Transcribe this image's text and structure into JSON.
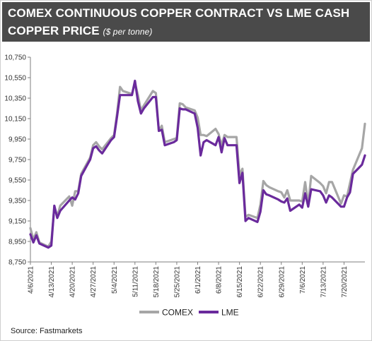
{
  "title_line1": "COMEX CONTINUOUS COPPER CONTRACT VS LME CASH",
  "title_line2": "COPPER PRICE",
  "subtitle": "($ per tonne)",
  "source": "Source: Fastmarkets",
  "chart_data": {
    "type": "line",
    "ylim": [
      8750,
      10750
    ],
    "yticks": [
      8750,
      8950,
      9150,
      9350,
      9550,
      9750,
      9950,
      10150,
      10350,
      10550,
      10750
    ],
    "ytick_labels": [
      "8,750",
      "8,950",
      "9,150",
      "9,350",
      "9,550",
      "9,750",
      "9,950",
      "10,150",
      "10,350",
      "10,550",
      "10,750"
    ],
    "xlim": [
      "2021-04-06",
      "2021-07-27"
    ],
    "xtick_labels": [
      "4/6/2021",
      "4/13/2021",
      "4/20/2021",
      "4/27/2021",
      "5/4/2021",
      "5/11/2021",
      "5/18/2021",
      "5/25/2021",
      "6/1/2021",
      "6/8/2021",
      "6/15/2021",
      "6/22/2021",
      "6/29/2021",
      "7/6/2021",
      "7/13/2021",
      "7/20/2021"
    ],
    "xtick_dates": [
      "2021-04-06",
      "2021-04-13",
      "2021-04-20",
      "2021-04-27",
      "2021-05-04",
      "2021-05-11",
      "2021-05-18",
      "2021-05-25",
      "2021-06-01",
      "2021-06-08",
      "2021-06-15",
      "2021-06-22",
      "2021-06-29",
      "2021-07-06",
      "2021-07-13",
      "2021-07-20"
    ],
    "grid": false,
    "legend": "bottom",
    "series": [
      {
        "name": "COMEX",
        "color": "#a6a6a6",
        "points": [
          [
            "2021-04-06",
            9080
          ],
          [
            "2021-04-07",
            8970
          ],
          [
            "2021-04-08",
            9040
          ],
          [
            "2021-04-09",
            8940
          ],
          [
            "2021-04-12",
            8900
          ],
          [
            "2021-04-13",
            8950
          ],
          [
            "2021-04-14",
            9280
          ],
          [
            "2021-04-15",
            9200
          ],
          [
            "2021-04-16",
            9300
          ],
          [
            "2021-04-19",
            9390
          ],
          [
            "2021-04-20",
            9300
          ],
          [
            "2021-04-21",
            9440
          ],
          [
            "2021-04-22",
            9440
          ],
          [
            "2021-04-23",
            9610
          ],
          [
            "2021-04-26",
            9770
          ],
          [
            "2021-04-27",
            9890
          ],
          [
            "2021-04-28",
            9920
          ],
          [
            "2021-04-29",
            9880
          ],
          [
            "2021-04-30",
            9850
          ],
          [
            "2021-05-03",
            9960
          ],
          [
            "2021-05-04",
            9990
          ],
          [
            "2021-05-05",
            10200
          ],
          [
            "2021-05-06",
            10460
          ],
          [
            "2021-05-07",
            10420
          ],
          [
            "2021-05-10",
            10390
          ],
          [
            "2021-05-11",
            10500
          ],
          [
            "2021-05-12",
            10380
          ],
          [
            "2021-05-13",
            10230
          ],
          [
            "2021-05-14",
            10280
          ],
          [
            "2021-05-17",
            10420
          ],
          [
            "2021-05-18",
            10400
          ],
          [
            "2021-05-19",
            10030
          ],
          [
            "2021-05-20",
            10080
          ],
          [
            "2021-05-21",
            9920
          ],
          [
            "2021-05-24",
            9950
          ],
          [
            "2021-05-25",
            9960
          ],
          [
            "2021-05-26",
            10300
          ],
          [
            "2021-05-27",
            10290
          ],
          [
            "2021-05-28",
            10260
          ],
          [
            "2021-05-31",
            10230
          ],
          [
            "2021-06-01",
            10160
          ],
          [
            "2021-06-02",
            9990
          ],
          [
            "2021-06-03",
            9990
          ],
          [
            "2021-06-04",
            9980
          ],
          [
            "2021-06-07",
            10050
          ],
          [
            "2021-06-08",
            10000
          ],
          [
            "2021-06-09",
            9890
          ],
          [
            "2021-06-10",
            9990
          ],
          [
            "2021-06-11",
            9970
          ],
          [
            "2021-06-14",
            9970
          ],
          [
            "2021-06-15",
            9600
          ],
          [
            "2021-06-16",
            9660
          ],
          [
            "2021-06-17",
            9190
          ],
          [
            "2021-06-18",
            9210
          ],
          [
            "2021-06-21",
            9180
          ],
          [
            "2021-06-22",
            9310
          ],
          [
            "2021-06-23",
            9540
          ],
          [
            "2021-06-24",
            9500
          ],
          [
            "2021-06-25",
            9480
          ],
          [
            "2021-06-28",
            9440
          ],
          [
            "2021-06-29",
            9430
          ],
          [
            "2021-06-30",
            9380
          ],
          [
            "2021-07-01",
            9450
          ],
          [
            "2021-07-02",
            9350
          ],
          [
            "2021-07-05",
            9350
          ],
          [
            "2021-07-06",
            9340
          ],
          [
            "2021-07-07",
            9530
          ],
          [
            "2021-07-08",
            9310
          ],
          [
            "2021-07-09",
            9590
          ],
          [
            "2021-07-12",
            9520
          ],
          [
            "2021-07-13",
            9490
          ],
          [
            "2021-07-14",
            9420
          ],
          [
            "2021-07-15",
            9530
          ],
          [
            "2021-07-16",
            9530
          ],
          [
            "2021-07-19",
            9320
          ],
          [
            "2021-07-20",
            9400
          ],
          [
            "2021-07-21",
            9390
          ],
          [
            "2021-07-22",
            9520
          ],
          [
            "2021-07-23",
            9650
          ],
          [
            "2021-07-26",
            9860
          ],
          [
            "2021-07-27",
            10100
          ]
        ]
      },
      {
        "name": "LME",
        "color": "#6a2a9c",
        "points": [
          [
            "2021-04-06",
            9020
          ],
          [
            "2021-04-07",
            8940
          ],
          [
            "2021-04-08",
            9010
          ],
          [
            "2021-04-09",
            8930
          ],
          [
            "2021-04-12",
            8890
          ],
          [
            "2021-04-13",
            8910
          ],
          [
            "2021-04-14",
            9300
          ],
          [
            "2021-04-15",
            9180
          ],
          [
            "2021-04-16",
            9250
          ],
          [
            "2021-04-19",
            9350
          ],
          [
            "2021-04-20",
            9380
          ],
          [
            "2021-04-21",
            9360
          ],
          [
            "2021-04-22",
            9420
          ],
          [
            "2021-04-23",
            9590
          ],
          [
            "2021-04-26",
            9750
          ],
          [
            "2021-04-27",
            9860
          ],
          [
            "2021-04-28",
            9880
          ],
          [
            "2021-04-29",
            9840
          ],
          [
            "2021-04-30",
            9810
          ],
          [
            "2021-05-03",
            9940
          ],
          [
            "2021-05-04",
            9970
          ],
          [
            "2021-05-05",
            10170
          ],
          [
            "2021-05-06",
            10380
          ],
          [
            "2021-05-07",
            10380
          ],
          [
            "2021-05-10",
            10380
          ],
          [
            "2021-05-11",
            10520
          ],
          [
            "2021-05-12",
            10320
          ],
          [
            "2021-05-13",
            10200
          ],
          [
            "2021-05-14",
            10250
          ],
          [
            "2021-05-17",
            10360
          ],
          [
            "2021-05-18",
            10360
          ],
          [
            "2021-05-19",
            10030
          ],
          [
            "2021-05-20",
            10040
          ],
          [
            "2021-05-21",
            9890
          ],
          [
            "2021-05-24",
            9920
          ],
          [
            "2021-05-25",
            9940
          ],
          [
            "2021-05-26",
            10250
          ],
          [
            "2021-05-27",
            10240
          ],
          [
            "2021-05-28",
            10240
          ],
          [
            "2021-05-31",
            10200
          ],
          [
            "2021-06-01",
            10060
          ],
          [
            "2021-06-02",
            9790
          ],
          [
            "2021-06-03",
            9920
          ],
          [
            "2021-06-04",
            9940
          ],
          [
            "2021-06-07",
            9890
          ],
          [
            "2021-06-08",
            9970
          ],
          [
            "2021-06-09",
            9820
          ],
          [
            "2021-06-10",
            9960
          ],
          [
            "2021-06-11",
            9890
          ],
          [
            "2021-06-14",
            9890
          ],
          [
            "2021-06-15",
            9520
          ],
          [
            "2021-06-16",
            9620
          ],
          [
            "2021-06-17",
            9150
          ],
          [
            "2021-06-18",
            9180
          ],
          [
            "2021-06-21",
            9140
          ],
          [
            "2021-06-22",
            9240
          ],
          [
            "2021-06-23",
            9450
          ],
          [
            "2021-06-24",
            9410
          ],
          [
            "2021-06-25",
            9400
          ],
          [
            "2021-06-28",
            9360
          ],
          [
            "2021-06-29",
            9340
          ],
          [
            "2021-06-30",
            9330
          ],
          [
            "2021-07-01",
            9370
          ],
          [
            "2021-07-02",
            9250
          ],
          [
            "2021-07-05",
            9310
          ],
          [
            "2021-07-06",
            9280
          ],
          [
            "2021-07-07",
            9420
          ],
          [
            "2021-07-08",
            9290
          ],
          [
            "2021-07-09",
            9460
          ],
          [
            "2021-07-12",
            9440
          ],
          [
            "2021-07-13",
            9400
          ],
          [
            "2021-07-14",
            9330
          ],
          [
            "2021-07-15",
            9400
          ],
          [
            "2021-07-16",
            9380
          ],
          [
            "2021-07-19",
            9290
          ],
          [
            "2021-07-20",
            9290
          ],
          [
            "2021-07-21",
            9380
          ],
          [
            "2021-07-22",
            9430
          ],
          [
            "2021-07-23",
            9610
          ],
          [
            "2021-07-26",
            9700
          ],
          [
            "2021-07-27",
            9790
          ]
        ]
      }
    ]
  }
}
